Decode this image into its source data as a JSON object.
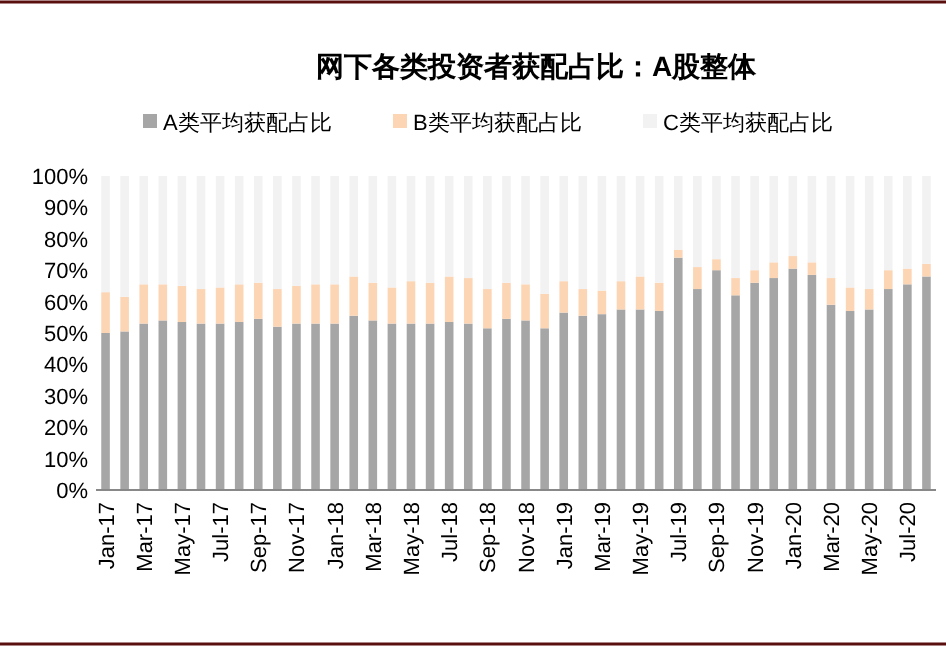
{
  "chart_data": {
    "type": "bar",
    "title": "网下各类投资者获配占比：A股整体",
    "stacked": true,
    "legend": "top",
    "grid": false,
    "categories": [
      "Jan-17",
      null,
      "Mar-17",
      null,
      "May-17",
      null,
      "Jul-17",
      null,
      "Sep-17",
      null,
      "Nov-17",
      null,
      "Jan-18",
      null,
      "Mar-18",
      null,
      "May-18",
      null,
      "Jul-18",
      null,
      "Sep-18",
      null,
      "Nov-18",
      null,
      "Jan-19",
      null,
      "Mar-19",
      null,
      "May-19",
      null,
      "Jul-19",
      null,
      "Sep-19",
      null,
      "Nov-19",
      null,
      "Jan-20",
      null,
      "Mar-20",
      null,
      "May-20",
      null,
      "Jul-20",
      null
    ],
    "ylim": [
      0,
      100
    ],
    "yticks": [
      {
        "value": 0,
        "label": "0%"
      },
      {
        "value": 10,
        "label": "10%"
      },
      {
        "value": 20,
        "label": "20%"
      },
      {
        "value": 30,
        "label": "30%"
      },
      {
        "value": 40,
        "label": "40%"
      },
      {
        "value": 50,
        "label": "50%"
      },
      {
        "value": 60,
        "label": "60%"
      },
      {
        "value": 70,
        "label": "70%"
      },
      {
        "value": 80,
        "label": "80%"
      },
      {
        "value": 90,
        "label": "90%"
      },
      {
        "value": 100,
        "label": "100%"
      }
    ],
    "series": [
      {
        "name": "A类平均获配占比",
        "color": "#a6a6a6",
        "values": [
          50,
          50.5,
          53,
          54,
          53.5,
          53,
          53,
          53.5,
          54.5,
          52,
          53,
          53,
          53,
          55.5,
          54,
          53,
          53,
          53,
          53.5,
          53,
          51.5,
          54.5,
          54,
          51.5,
          56.5,
          55.5,
          56,
          57.5,
          57.5,
          57,
          74,
          64,
          70,
          62,
          66,
          67.5,
          70.5,
          68.5,
          59,
          57,
          57.5,
          64,
          65.5,
          68
        ]
      },
      {
        "name": "B类平均获配占比",
        "color": "#fcd5b4",
        "values": [
          13,
          11,
          12.5,
          11.5,
          11.5,
          11,
          11.5,
          12,
          11.5,
          12,
          12,
          12.5,
          12.5,
          12.5,
          12,
          11.5,
          13.5,
          13,
          14.5,
          14.5,
          12.5,
          11.5,
          11.5,
          11,
          10,
          8.5,
          7.5,
          9,
          10.5,
          9,
          2.5,
          7,
          3.5,
          5.5,
          4,
          5,
          4,
          4,
          8.5,
          7.5,
          6.5,
          6,
          5,
          4
        ]
      },
      {
        "name": "C类平均获配占比",
        "color": "#f2f2f2",
        "values": [
          37,
          38.5,
          34.5,
          34.5,
          35,
          36,
          35.5,
          34.5,
          34,
          36,
          35,
          34.5,
          34.5,
          32,
          34,
          35.5,
          33.5,
          34,
          32,
          32.5,
          36,
          34,
          34.5,
          37.5,
          33.5,
          36,
          36.5,
          33.5,
          32,
          34,
          23.5,
          29,
          26.5,
          32.5,
          30,
          27.5,
          25.5,
          27.5,
          32.5,
          35.5,
          36,
          30,
          29.5,
          28
        ]
      }
    ]
  }
}
